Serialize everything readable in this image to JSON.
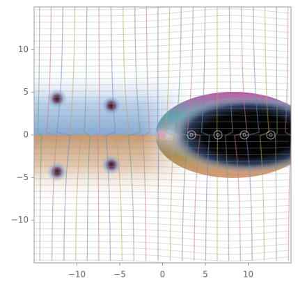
{
  "chart_data": {
    "type": "complex-plot",
    "xlim": [
      -15,
      15
    ],
    "ylim": [
      -15,
      15
    ],
    "xticks": [
      {
        "value": -10,
        "label": "−10"
      },
      {
        "value": -5,
        "label": "−5"
      },
      0,
      5,
      10
    ],
    "yticks": [
      {
        "value": -10,
        "label": "−10"
      },
      {
        "value": -5,
        "label": "−5"
      },
      0,
      5,
      10
    ]
  }
}
